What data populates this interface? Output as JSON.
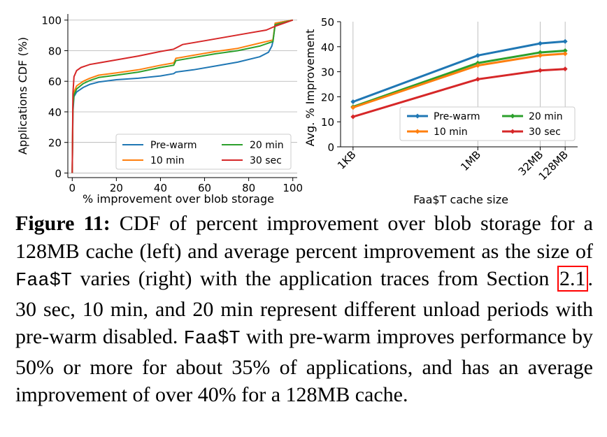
{
  "chart_data": [
    {
      "type": "line",
      "subtype": "cdf",
      "xlabel": "% improvement over blob storage",
      "ylabel": "Applications CDF (%)",
      "xlim": [
        -2,
        102
      ],
      "ylim": [
        -3,
        104
      ],
      "xticks": [
        0,
        20,
        40,
        60,
        80,
        100
      ],
      "yticks": [
        0,
        20,
        40,
        60,
        80,
        100
      ],
      "xtick_labels": [
        "0",
        "20",
        "40",
        "60",
        "80",
        "100"
      ],
      "ytick_labels": [
        "0",
        "20",
        "40",
        "60",
        "80",
        "100"
      ],
      "grid": "horizontal",
      "legend_position": "lower-right",
      "series": [
        {
          "name": "Pre-warm",
          "color": "#1f77b4",
          "x": [
            0,
            0.3,
            0.8,
            2,
            5,
            8,
            12,
            20,
            30,
            40,
            46,
            47,
            55,
            65,
            75,
            85,
            89,
            90.5,
            91,
            92,
            100
          ],
          "y": [
            0,
            40,
            50,
            53,
            56,
            58,
            59.5,
            61,
            62,
            63.5,
            65,
            66,
            67.5,
            70,
            72.5,
            76,
            79,
            83,
            86,
            98,
            100
          ]
        },
        {
          "name": "10 min",
          "color": "#ff7f0e",
          "x": [
            0,
            0.3,
            0.8,
            2,
            5,
            8,
            12,
            20,
            30,
            40,
            46,
            47,
            55,
            65,
            75,
            85,
            91,
            92,
            100
          ],
          "y": [
            0,
            45,
            53,
            57,
            60,
            62,
            64,
            65.5,
            67.5,
            70.5,
            72,
            75,
            77,
            79.5,
            81.5,
            85,
            87,
            98,
            100
          ]
        },
        {
          "name": "20 min",
          "color": "#2ca02c",
          "x": [
            0,
            0.3,
            0.8,
            2,
            5,
            8,
            12,
            20,
            30,
            40,
            46,
            47,
            55,
            65,
            75,
            85,
            91,
            92,
            100
          ],
          "y": [
            0,
            43,
            51,
            55,
            58.5,
            60.5,
            62.5,
            64,
            66,
            69,
            70.5,
            73.5,
            75.5,
            78,
            80,
            83,
            86,
            97,
            100
          ]
        },
        {
          "name": "30 sec",
          "color": "#d62728",
          "x": [
            0,
            0.3,
            0.8,
            2,
            4,
            8,
            12,
            20,
            30,
            40,
            46,
            50,
            60,
            70,
            80,
            88,
            92,
            100
          ],
          "y": [
            0,
            52,
            63,
            67,
            69,
            71,
            72,
            74,
            76.5,
            79.5,
            81,
            84,
            86.5,
            89,
            91.5,
            93.5,
            96,
            100
          ]
        }
      ],
      "legend": [
        {
          "name": "Pre-warm",
          "color": "#1f77b4"
        },
        {
          "name": "20 min",
          "color": "#2ca02c"
        },
        {
          "name": "10 min",
          "color": "#ff7f0e"
        },
        {
          "name": "30 sec",
          "color": "#d62728"
        }
      ]
    },
    {
      "type": "line",
      "xlabel": "Faa$T cache size",
      "ylabel": "Avg. % Improvement",
      "categories": [
        "1KB",
        "1MB",
        "32MB",
        "128MB"
      ],
      "x_log2_position": [
        10,
        20,
        25,
        27
      ],
      "xlim": [
        9,
        28
      ],
      "ylim": [
        0,
        50
      ],
      "yticks": [
        0,
        10,
        20,
        30,
        40,
        50
      ],
      "ytick_labels": [
        "0",
        "10",
        "20",
        "30",
        "40",
        "50"
      ],
      "grid": "vertical",
      "legend_position": "lower-right",
      "series": [
        {
          "name": "Pre-warm",
          "color": "#1f77b4",
          "values": [
            18,
            36.5,
            41.3,
            42.1
          ]
        },
        {
          "name": "20 min",
          "color": "#2ca02c",
          "values": [
            16,
            33.5,
            37.7,
            38.4
          ]
        },
        {
          "name": "10 min",
          "color": "#ff7f0e",
          "values": [
            15.7,
            32.5,
            36.5,
            37.2
          ]
        },
        {
          "name": "30 sec",
          "color": "#d62728",
          "values": [
            12,
            27,
            30.5,
            31.1
          ]
        }
      ],
      "legend": [
        {
          "name": "Pre-warm",
          "color": "#1f77b4"
        },
        {
          "name": "20 min",
          "color": "#2ca02c"
        },
        {
          "name": "10 min",
          "color": "#ff7f0e"
        },
        {
          "name": "30 sec",
          "color": "#d62728"
        }
      ]
    }
  ],
  "caption": {
    "label": "Figure 11:",
    "part1": " CDF of percent improvement over blob storage for a 128MB cache (left) and average percent improvement as the size of ",
    "sys1": "Faa$T",
    "part2": " varies (right) with the application traces from Section ",
    "ref": "2.1",
    "part3": ". 30 sec, 10 min, and 20 min represent different unload periods with pre-warm disabled. ",
    "sys2": "Faa$T",
    "part4": " with pre-warm improves performance by 50% or more for about 35% of applications, and has an average improvement of over 40% for a 128MB cache."
  }
}
